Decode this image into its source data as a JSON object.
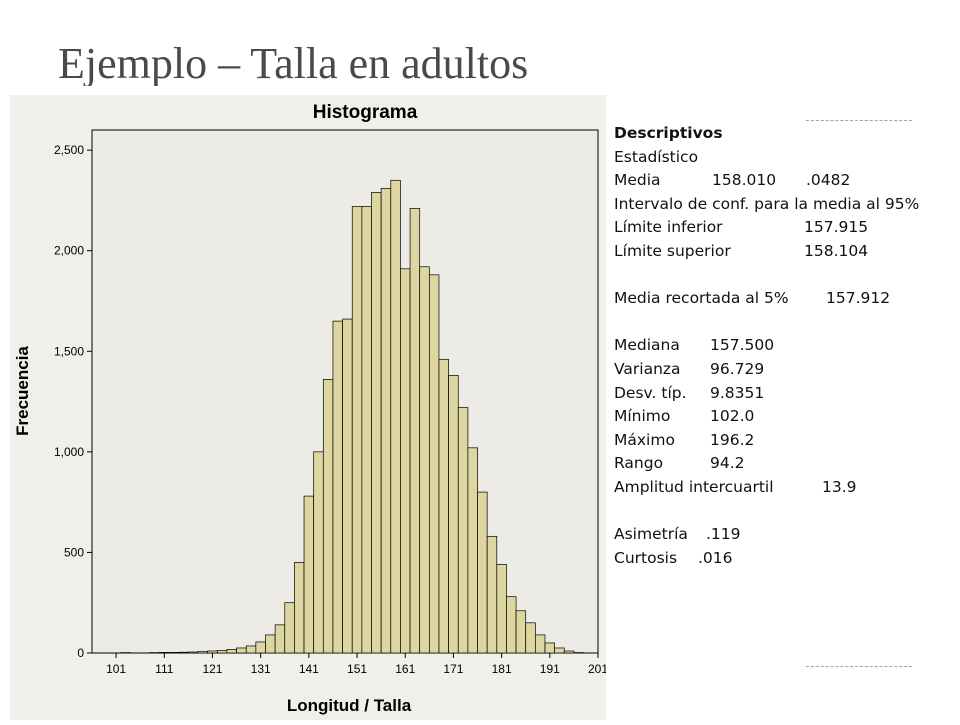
{
  "slide_title": "Ejemplo – Talla en adultos",
  "chart_data": {
    "type": "bar",
    "title": "Histograma",
    "xlabel": "Longitud / Talla",
    "ylabel": "Frecuencia",
    "x_ticks": [
      "101",
      "111",
      "121",
      "131",
      "141",
      "151",
      "161",
      "171",
      "181",
      "191",
      "201"
    ],
    "y_ticks": [
      "0",
      "500",
      "1,000",
      "1,500",
      "2,000",
      "2,500"
    ],
    "ylim": [
      0,
      2600
    ],
    "xlim": [
      96,
      201
    ],
    "bin_width": 2,
    "grid": false,
    "bar_color": "#ddd6a0",
    "background": "#ecebe5",
    "bins_start": [
      102,
      104,
      106,
      108,
      110,
      112,
      114,
      116,
      118,
      120,
      122,
      124,
      126,
      128,
      130,
      132,
      134,
      136,
      138,
      140,
      142,
      144,
      146,
      148,
      150,
      152,
      154,
      156,
      158,
      160,
      162,
      164,
      166,
      168,
      170,
      172,
      174,
      176,
      178,
      180,
      182,
      184,
      186,
      188,
      190,
      192,
      194,
      196
    ],
    "values": [
      2,
      0,
      0,
      2,
      3,
      3,
      4,
      5,
      7,
      10,
      13,
      18,
      25,
      35,
      55,
      90,
      140,
      250,
      450,
      780,
      1000,
      1360,
      1650,
      1660,
      2220,
      2220,
      2290,
      2310,
      2350,
      1910,
      2210,
      1920,
      1880,
      1460,
      1380,
      1220,
      1020,
      800,
      580,
      440,
      280,
      210,
      150,
      90,
      50,
      25,
      10,
      2
    ]
  },
  "stats": {
    "heading": "Descriptivos",
    "subheading": "Estadístico",
    "media_label": "Media",
    "media_value": "158.010",
    "media_error": ".0482",
    "ic_label": "Intervalo de conf. para la media al 95%",
    "li_label": "Límite inferior",
    "li_value": "157.915",
    "ls_label": "Límite superior",
    "ls_value": "158.104",
    "recortada_label": "Media recortada al 5%",
    "recortada_value": "157.912",
    "mediana_label": "Mediana",
    "mediana_value": "157.500",
    "varianza_label": "Varianza",
    "varianza_value": "96.729",
    "desv_label": "Desv. típ.",
    "desv_value": "9.8351",
    "minimo_label": "Mínimo",
    "minimo_value": "102.0",
    "maximo_label": "Máximo",
    "maximo_value": "196.2",
    "rango_label": "Rango",
    "rango_value": "94.2",
    "amplitud_label": "Amplitud intercuartil",
    "amplitud_value": "13.9",
    "asimetria_label": "Asimetría",
    "asimetria_value": ".119",
    "curtosis_label": "Curtosis",
    "curtosis_value": ".016"
  }
}
